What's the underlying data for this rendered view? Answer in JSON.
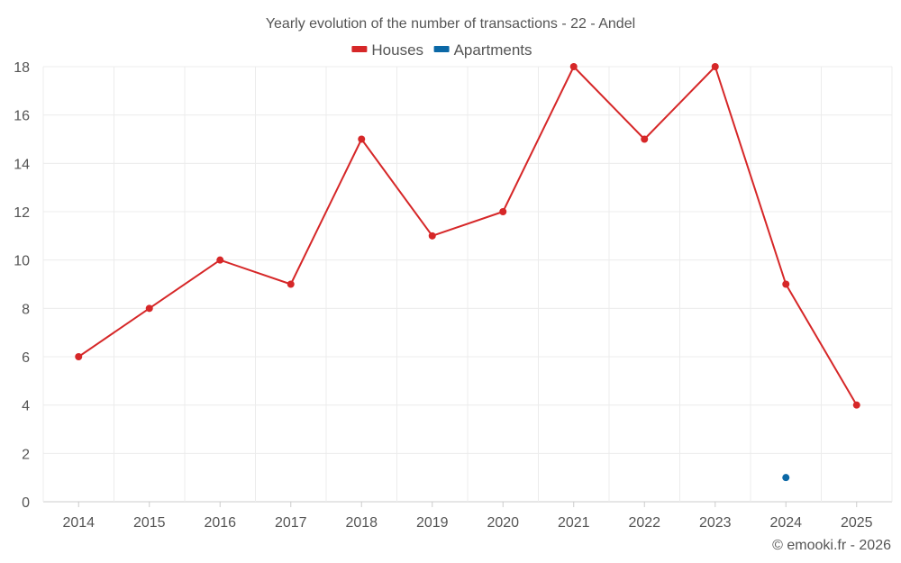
{
  "chart_data": {
    "type": "line",
    "title": "Yearly evolution of the number of transactions - 22 - Andel",
    "xlabel": "",
    "ylabel": "",
    "categories": [
      "2014",
      "2015",
      "2016",
      "2017",
      "2018",
      "2019",
      "2020",
      "2021",
      "2022",
      "2023",
      "2024",
      "2025"
    ],
    "ylim": [
      0,
      18
    ],
    "yticks": [
      0,
      2,
      4,
      6,
      8,
      10,
      12,
      14,
      16,
      18
    ],
    "grid": true,
    "legend_position": "top-center",
    "series": [
      {
        "name": "Houses",
        "color": "#d62728",
        "values": [
          6,
          8,
          10,
          9,
          15,
          11,
          12,
          18,
          15,
          18,
          9,
          4
        ]
      },
      {
        "name": "Apartments",
        "color": "#0b68a6",
        "values": [
          null,
          null,
          null,
          null,
          null,
          null,
          null,
          null,
          null,
          null,
          1,
          null
        ]
      }
    ]
  },
  "footer": {
    "credit": "© emooki.fr - 2026"
  }
}
